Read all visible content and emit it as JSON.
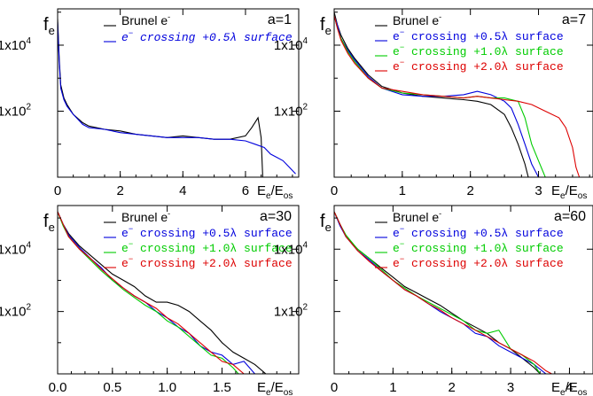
{
  "chart_data": [
    {
      "type": "line",
      "label": "a=1",
      "ylabel": "f",
      "ylabel_sub": "e",
      "xlabel": "E",
      "xlabel_sub1": "e",
      "xlabel_sep": "/E",
      "xlabel_sub2": "os",
      "xlim": [
        0,
        7.7
      ],
      "ylim_log10": [
        0,
        5.1
      ],
      "xticks": [
        0,
        2,
        4,
        6
      ],
      "xtick_labels": [
        "0",
        "2",
        "4",
        "6"
      ],
      "yticks_log10": [
        2,
        4
      ],
      "ytick_labels": [
        "1x10",
        "1x10"
      ],
      "ytick_sups": [
        "2",
        "4"
      ],
      "legend": [
        {
          "pre": "Brunel e",
          "sup": "-",
          "post": "",
          "color": "#000000",
          "italic": false
        },
        {
          "pre": "e",
          "sup": "−",
          "post": " crossing +0.5λ surface",
          "color": "#0000dd",
          "italic": true
        }
      ],
      "series": [
        {
          "color": "#000000",
          "x": [
            0,
            0.05,
            0.1,
            0.2,
            0.3,
            0.5,
            0.8,
            1.0,
            1.5,
            2.0,
            2.5,
            3.0,
            3.5,
            4.0,
            4.5,
            5.0,
            5.5,
            6.0,
            6.2,
            6.4,
            6.5,
            6.55
          ],
          "y": [
            4.8,
            3.6,
            2.8,
            2.4,
            2.2,
            1.9,
            1.65,
            1.55,
            1.45,
            1.4,
            1.3,
            1.25,
            1.2,
            1.25,
            1.2,
            1.15,
            1.15,
            1.25,
            1.5,
            1.8,
            1.2,
            0
          ]
        },
        {
          "color": "#0000dd",
          "x": [
            0,
            0.05,
            0.1,
            0.2,
            0.3,
            0.5,
            0.8,
            1.0,
            1.5,
            2.0,
            2.5,
            3.0,
            3.5,
            4.0,
            4.5,
            5.0,
            5.5,
            6.0,
            6.3,
            6.6,
            6.8,
            7.0,
            7.2,
            7.4,
            7.6
          ],
          "y": [
            4.7,
            3.5,
            2.7,
            2.35,
            2.15,
            1.9,
            1.6,
            1.5,
            1.45,
            1.35,
            1.3,
            1.25,
            1.2,
            1.2,
            1.2,
            1.15,
            1.15,
            1.1,
            1.0,
            0.9,
            0.7,
            0.6,
            0.5,
            0.3,
            0.1
          ]
        }
      ]
    },
    {
      "type": "line",
      "label": "a=7",
      "ylabel": "f",
      "ylabel_sub": "e",
      "xlabel": "E",
      "xlabel_sub1": "e",
      "xlabel_sep": "/E",
      "xlabel_sub2": "os",
      "xlim": [
        0,
        3.8
      ],
      "ylim_log10": [
        0,
        5.1
      ],
      "xticks": [
        0,
        1,
        2,
        3
      ],
      "xtick_labels": [
        "0",
        "1",
        "2",
        "3"
      ],
      "yticks_log10": [
        2,
        4
      ],
      "ytick_labels": [
        "1x10",
        "1x10"
      ],
      "ytick_sups": [
        "2",
        "4"
      ],
      "legend": [
        {
          "pre": "Brunel e",
          "sup": "-",
          "post": "",
          "color": "#000000",
          "italic": false
        },
        {
          "pre": "e",
          "sup": "−",
          "post": " crossing +0.5λ surface",
          "color": "#0000dd",
          "italic": false
        },
        {
          "pre": "e",
          "sup": "−",
          "post": " crossing +1.0λ surface",
          "color": "#00cc00",
          "italic": false
        },
        {
          "pre": "e",
          "sup": "−",
          "post": " crossing +2.0λ surface",
          "color": "#dd0000",
          "italic": false
        }
      ],
      "series": [
        {
          "color": "#000000",
          "x": [
            0,
            0.05,
            0.1,
            0.2,
            0.3,
            0.5,
            0.7,
            1.0,
            1.3,
            1.6,
            1.9,
            2.1,
            2.3,
            2.5,
            2.6,
            2.7,
            2.8,
            2.85
          ],
          "y": [
            5.0,
            4.6,
            4.3,
            3.9,
            3.6,
            3.1,
            2.75,
            2.55,
            2.45,
            2.4,
            2.35,
            2.3,
            2.2,
            1.9,
            1.5,
            1.0,
            0.4,
            0
          ]
        },
        {
          "color": "#0000dd",
          "x": [
            0,
            0.05,
            0.1,
            0.2,
            0.3,
            0.5,
            0.7,
            1.0,
            1.3,
            1.6,
            1.9,
            2.1,
            2.3,
            2.5,
            2.6,
            2.7,
            2.8,
            2.9,
            3.0
          ],
          "y": [
            4.9,
            4.6,
            4.2,
            3.85,
            3.55,
            3.05,
            2.7,
            2.5,
            2.45,
            2.45,
            2.5,
            2.6,
            2.5,
            2.3,
            2.1,
            1.6,
            1.0,
            0.4,
            0
          ]
        },
        {
          "color": "#00cc00",
          "x": [
            0,
            0.05,
            0.1,
            0.2,
            0.3,
            0.5,
            0.7,
            1.0,
            1.3,
            1.6,
            1.9,
            2.1,
            2.3,
            2.5,
            2.7,
            2.8,
            2.9,
            3.0,
            3.1
          ],
          "y": [
            4.9,
            4.5,
            4.2,
            3.8,
            3.5,
            3.0,
            2.7,
            2.55,
            2.5,
            2.45,
            2.4,
            2.45,
            2.4,
            2.4,
            2.3,
            1.8,
            1.0,
            0.5,
            0
          ]
        },
        {
          "color": "#dd0000",
          "x": [
            0,
            0.05,
            0.1,
            0.2,
            0.3,
            0.5,
            0.7,
            1.0,
            1.3,
            1.6,
            1.9,
            2.1,
            2.3,
            2.5,
            2.7,
            2.9,
            3.1,
            3.3,
            3.4,
            3.5,
            3.55,
            3.6
          ],
          "y": [
            4.9,
            4.5,
            4.15,
            3.75,
            3.45,
            3.0,
            2.7,
            2.6,
            2.5,
            2.45,
            2.4,
            2.45,
            2.4,
            2.35,
            2.3,
            2.2,
            2.0,
            1.8,
            1.5,
            0.9,
            0.3,
            0
          ]
        }
      ]
    },
    {
      "type": "line",
      "label": "a=30",
      "ylabel": "f",
      "ylabel_sub": "e",
      "xlabel": "E",
      "xlabel_sub1": "e",
      "xlabel_sep": "/E",
      "xlabel_sub2": "os",
      "xlim": [
        0,
        2.2
      ],
      "ylim_log10": [
        0,
        5.4
      ],
      "xticks": [
        0,
        0.5,
        1.0,
        1.5
      ],
      "xtick_labels": [
        "0.0",
        "0.5",
        "1.0",
        "1.5"
      ],
      "yticks_log10": [
        2,
        4
      ],
      "ytick_labels": [
        "1x10",
        "1x10"
      ],
      "ytick_sups": [
        "2",
        "4"
      ],
      "legend": [
        {
          "pre": "Brunel e",
          "sup": "-",
          "post": "",
          "color": "#000000",
          "italic": false
        },
        {
          "pre": "e",
          "sup": "−",
          "post": " crossing +0.5λ surface",
          "color": "#0000dd",
          "italic": false
        },
        {
          "pre": "e",
          "sup": "−",
          "post": " crossing +1.0λ surface",
          "color": "#00cc00",
          "italic": false
        },
        {
          "pre": "e",
          "sup": "−",
          "post": " crossing +2.0λ surface",
          "color": "#dd0000",
          "italic": false
        }
      ],
      "series": [
        {
          "color": "#000000",
          "x": [
            0,
            0.05,
            0.1,
            0.2,
            0.3,
            0.4,
            0.5,
            0.6,
            0.7,
            0.8,
            0.9,
            1.0,
            1.1,
            1.2,
            1.3,
            1.4,
            1.5,
            1.6,
            1.7,
            1.8,
            1.9
          ],
          "y": [
            5.2,
            4.8,
            4.5,
            4.1,
            3.8,
            3.5,
            3.2,
            3.0,
            2.8,
            2.5,
            2.3,
            2.3,
            2.2,
            2.0,
            1.7,
            1.4,
            1.0,
            0.7,
            0.5,
            0.3,
            0
          ]
        },
        {
          "color": "#0000dd",
          "x": [
            0,
            0.05,
            0.1,
            0.2,
            0.3,
            0.4,
            0.5,
            0.6,
            0.7,
            0.8,
            0.9,
            1.0,
            1.1,
            1.2,
            1.3,
            1.4,
            1.5,
            1.6,
            1.7,
            1.8
          ],
          "y": [
            5.2,
            4.8,
            4.45,
            4.05,
            3.7,
            3.4,
            3.0,
            2.75,
            2.5,
            2.3,
            2.0,
            1.8,
            1.5,
            1.3,
            0.9,
            0.7,
            0.6,
            0.3,
            0.4,
            0
          ]
        },
        {
          "color": "#00cc00",
          "x": [
            0,
            0.05,
            0.1,
            0.2,
            0.3,
            0.4,
            0.5,
            0.6,
            0.7,
            0.8,
            0.9,
            1.0,
            1.1,
            1.2,
            1.3,
            1.4,
            1.5,
            1.6,
            1.65
          ],
          "y": [
            5.2,
            4.75,
            4.4,
            4.0,
            3.65,
            3.3,
            3.0,
            2.7,
            2.45,
            2.2,
            2.0,
            1.7,
            1.5,
            1.2,
            0.9,
            0.6,
            0.5,
            0.2,
            0
          ]
        },
        {
          "color": "#dd0000",
          "x": [
            0,
            0.05,
            0.1,
            0.2,
            0.3,
            0.4,
            0.5,
            0.6,
            0.7,
            0.8,
            0.9,
            1.0,
            1.1,
            1.2,
            1.3,
            1.4,
            1.5,
            1.6,
            1.7
          ],
          "y": [
            5.2,
            4.8,
            4.4,
            4.0,
            3.7,
            3.35,
            3.05,
            2.75,
            2.5,
            2.3,
            2.1,
            1.8,
            1.6,
            1.3,
            1.0,
            0.7,
            0.4,
            0.3,
            0
          ]
        }
      ]
    },
    {
      "type": "line",
      "label": "a=60",
      "ylabel": "f",
      "ylabel_sub": "e",
      "xlabel": "E",
      "xlabel_sub1": "e",
      "xlabel_sep": "/E",
      "xlabel_sub2": "os",
      "xlim": [
        0,
        4.4
      ],
      "ylim_log10": [
        0,
        5.4
      ],
      "xticks": [
        0,
        1,
        2,
        3,
        4
      ],
      "xtick_labels": [
        "0",
        "1",
        "2",
        "3",
        "4"
      ],
      "yticks_log10": [
        2,
        4
      ],
      "ytick_labels": [
        "1x10",
        "1x10"
      ],
      "ytick_sups": [
        "2",
        "4"
      ],
      "legend": [
        {
          "pre": "Brunel e",
          "sup": "-",
          "post": "",
          "color": "#000000",
          "italic": false
        },
        {
          "pre": "e",
          "sup": "−",
          "post": " crossing +0.5λ surface",
          "color": "#0000dd",
          "italic": false
        },
        {
          "pre": "e",
          "sup": "−",
          "post": " crossing +1.0λ surface",
          "color": "#00cc00",
          "italic": false
        },
        {
          "pre": "e",
          "sup": "−",
          "post": " crossing +2.0λ surface",
          "color": "#dd0000",
          "italic": false
        }
      ],
      "series": [
        {
          "color": "#000000",
          "x": [
            0,
            0.1,
            0.2,
            0.4,
            0.6,
            0.8,
            1.0,
            1.2,
            1.4,
            1.6,
            1.8,
            2.0,
            2.2,
            2.4,
            2.6,
            2.8,
            3.0,
            3.2,
            3.4,
            3.5
          ],
          "y": [
            5.2,
            4.8,
            4.4,
            4.0,
            3.7,
            3.4,
            3.1,
            2.8,
            2.6,
            2.4,
            2.2,
            1.95,
            1.7,
            1.5,
            1.3,
            1.0,
            0.8,
            0.5,
            0.2,
            0
          ]
        },
        {
          "color": "#0000dd",
          "x": [
            0,
            0.1,
            0.2,
            0.4,
            0.6,
            0.8,
            1.0,
            1.2,
            1.4,
            1.6,
            1.8,
            2.0,
            2.2,
            2.4,
            2.6,
            2.8,
            3.0,
            3.2,
            3.4,
            3.6
          ],
          "y": [
            5.2,
            4.75,
            4.4,
            3.95,
            3.65,
            3.3,
            3.0,
            2.7,
            2.5,
            2.25,
            2.0,
            1.8,
            1.6,
            1.3,
            1.2,
            0.9,
            0.7,
            0.5,
            0.3,
            0
          ]
        },
        {
          "color": "#00cc00",
          "x": [
            0,
            0.1,
            0.2,
            0.4,
            0.6,
            0.8,
            1.0,
            1.2,
            1.4,
            1.6,
            1.8,
            2.0,
            2.2,
            2.4,
            2.6,
            2.8,
            3.0,
            3.2,
            3.4,
            3.5
          ],
          "y": [
            5.2,
            4.8,
            4.45,
            4.0,
            3.7,
            3.35,
            3.0,
            2.75,
            2.5,
            2.3,
            2.1,
            1.9,
            1.7,
            1.4,
            1.3,
            1.4,
            0.8,
            0.6,
            0.3,
            0
          ]
        },
        {
          "color": "#dd0000",
          "x": [
            0,
            0.1,
            0.2,
            0.4,
            0.6,
            0.8,
            1.0,
            1.2,
            1.4,
            1.6,
            1.8,
            2.0,
            2.2,
            2.4,
            2.6,
            2.8,
            3.0,
            3.2,
            3.4,
            3.6,
            3.7
          ],
          "y": [
            5.2,
            4.8,
            4.4,
            3.95,
            3.6,
            3.3,
            3.0,
            2.7,
            2.5,
            2.25,
            2.05,
            1.8,
            1.6,
            1.4,
            1.2,
            1.0,
            0.8,
            0.6,
            0.4,
            0.1,
            0
          ]
        }
      ]
    }
  ]
}
